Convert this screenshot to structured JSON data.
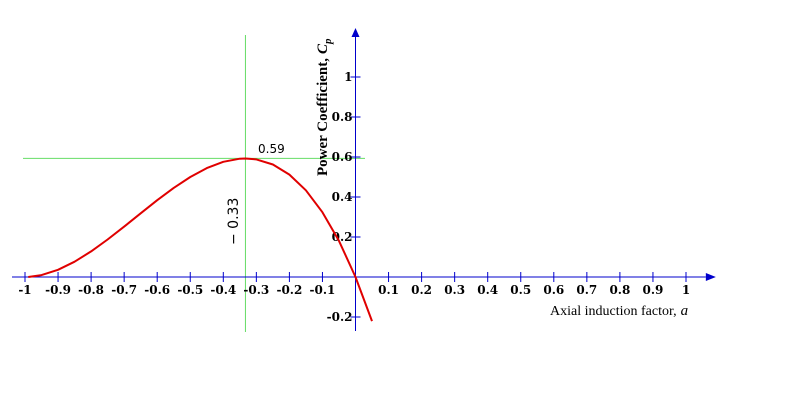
{
  "chart_data": {
    "type": "line",
    "xlabel": "Axial induction factor,",
    "xlabel_var": "a",
    "ylabel": "Power Coefficient,",
    "ylabel_var": "C",
    "ylabel_sub": "p",
    "xlim": [
      -1.0,
      1.06
    ],
    "ylim": [
      -0.27,
      1.2
    ],
    "x_ticks": [
      -1,
      -0.9,
      -0.8,
      -0.7,
      -0.6,
      -0.5,
      -0.4,
      -0.3,
      -0.2,
      -0.1,
      0.1,
      0.2,
      0.3,
      0.4,
      0.5,
      0.6,
      0.7,
      0.8,
      0.9,
      1
    ],
    "x_tick_labels": [
      "-1",
      "-0.9",
      "-0.8",
      "-0.7",
      "-0.6",
      "-0.5",
      "-0.4",
      "-0.3",
      "-0.2",
      "-0.1",
      "0.1",
      "0.2",
      "0.3",
      "0.4",
      "0.5",
      "0.6",
      "0.7",
      "0.8",
      "0.9",
      "1"
    ],
    "y_ticks": [
      -0.2,
      0.2,
      0.4,
      0.6,
      0.8,
      1
    ],
    "y_tick_labels": [
      "-0.2",
      "0.2",
      "0.4",
      "0.6",
      "0.8",
      "1"
    ],
    "series": [
      {
        "color": "#e00000",
        "x": [
          -0.99,
          -0.95,
          -0.9,
          -0.85,
          -0.8,
          -0.75,
          -0.7,
          -0.65,
          -0.6,
          -0.55,
          -0.5,
          -0.45,
          -0.4,
          -0.35,
          -0.333,
          -0.3,
          -0.25,
          -0.2,
          -0.15,
          -0.1,
          -0.05,
          0.0,
          0.05
        ],
        "y": [
          0.0,
          0.0095,
          0.036,
          0.0765,
          0.128,
          0.1875,
          0.252,
          0.3185,
          0.384,
          0.4455,
          0.5,
          0.5445,
          0.576,
          0.5915,
          0.5926,
          0.588,
          0.5625,
          0.512,
          0.4335,
          0.324,
          0.1805,
          0.0,
          -0.2205
        ]
      }
    ],
    "guides": {
      "color": "#66dd66",
      "vertical_x": -0.333,
      "horizontal_y": 0.593
    },
    "annotations": {
      "peak_value": "0.59",
      "peak_position": "− 0.33"
    },
    "grid": false,
    "legend": "none",
    "axis_color": "#0000cc"
  }
}
